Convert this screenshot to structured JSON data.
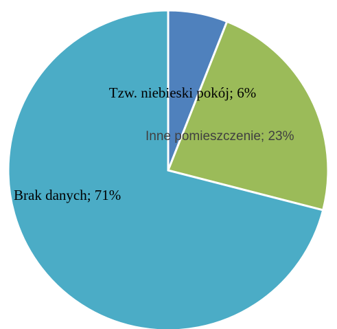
{
  "chart_data": {
    "type": "pie",
    "title": "",
    "slices": [
      {
        "label": "Tzw. niebieski pokój; 6%",
        "name": "Tzw. niebieski pokój",
        "value": 6,
        "color": "#4f81bd"
      },
      {
        "label": "Inne pomieszczenie; 23%",
        "name": "Inne pomieszczenie",
        "value": 23,
        "color": "#9bbb59"
      },
      {
        "label": "Brak danych; 71%",
        "name": "Brak danych",
        "value": 71,
        "color": "#4bacc6"
      }
    ],
    "start_angle": "12 o'clock",
    "direction": "clockwise",
    "legend": "none"
  }
}
